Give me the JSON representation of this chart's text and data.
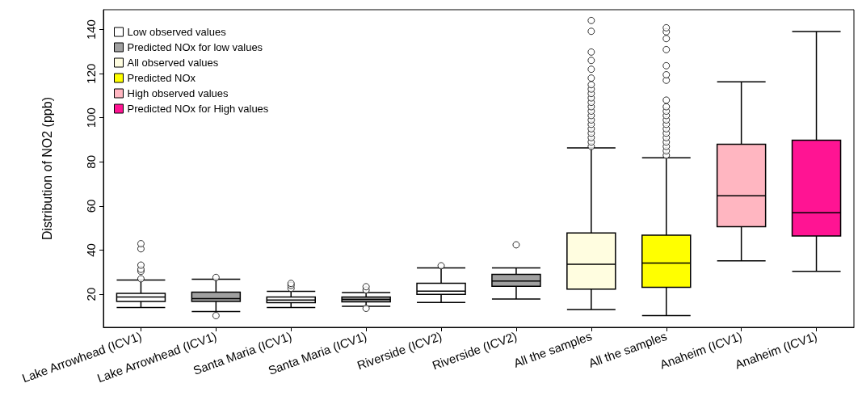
{
  "chart_data": {
    "type": "box",
    "ylabel": "Distribution of NO2 (ppb)",
    "categories": [
      "Lake Arrowhead (ICV1)",
      "Lake Arrowhead (ICV1)",
      "Santa Maria (ICV1)",
      "Santa Maria (ICV1)",
      "Riverside (ICV2)",
      "Riverside (ICV2)",
      "All the samples",
      "All the samples",
      "Anaheim (ICV1)",
      "Anaheim (ICV1)"
    ],
    "ylim": [
      5,
      149
    ],
    "yticks": [
      20,
      40,
      60,
      80,
      100,
      120,
      140
    ],
    "grid": false,
    "legend": "top left",
    "marker": "circle",
    "series": [
      {
        "name": "Low observed values",
        "color": "#ffffff",
        "boxes": [
          {
            "low": 14.0,
            "q1": 16.7,
            "median": 18.7,
            "q3": 20.4,
            "high": 26.4,
            "outliers": [
              27.0,
              30.4,
              31.3,
              33.2,
              40.6,
              42.9
            ]
          },
          null,
          {
            "low": 14.0,
            "q1": 16.2,
            "median": 17.4,
            "q3": 18.7,
            "high": 21.3,
            "outliers": [
              22.7,
              24.0,
              24.9
            ]
          },
          null,
          {
            "low": 16.3,
            "q1": 19.9,
            "median": 21.4,
            "q3": 25.0,
            "high": 31.9,
            "outliers": [
              32.9
            ]
          },
          null,
          null,
          null,
          null,
          null
        ]
      },
      {
        "name": "Predicted NOx for low values",
        "color": "#a0a0a0",
        "boxes": [
          null,
          {
            "low": 12.1,
            "q1": 16.7,
            "median": 18.0,
            "q3": 20.9,
            "high": 26.8,
            "outliers": [
              27.6,
              10.3
            ]
          },
          null,
          {
            "low": 14.5,
            "q1": 16.5,
            "median": 17.6,
            "q3": 18.7,
            "high": 20.8,
            "outliers": [
              21.9,
              23.4,
              13.6
            ]
          },
          null,
          {
            "low": 17.8,
            "q1": 23.6,
            "median": 26.0,
            "q3": 29.0,
            "high": 31.9,
            "outliers": [
              42.4
            ]
          },
          null,
          null,
          null,
          null
        ]
      },
      {
        "name": "All observed values",
        "color": "#fffde0",
        "boxes": [
          null,
          null,
          null,
          null,
          null,
          null,
          {
            "low": 13.1,
            "q1": 22.3,
            "median": 33.6,
            "q3": 47.8,
            "high": 86.3,
            "outliers": [
              87,
              89,
              91,
              93,
              95,
              97,
              99,
              101,
              103,
              105,
              107,
              109,
              111,
              113,
              115,
              118,
              122,
              126,
              129.8,
              139.2,
              144.1
            ]
          },
          null,
          null,
          null
        ]
      },
      {
        "name": "Predicted NOx",
        "color": "#ffff00",
        "boxes": [
          null,
          null,
          null,
          null,
          null,
          null,
          null,
          {
            "low": 10.3,
            "q1": 23.1,
            "median": 34.1,
            "q3": 46.8,
            "high": 81.9,
            "outliers": [
              83,
              85,
              87,
              89,
              91,
              93,
              95,
              97,
              99,
              101,
              103,
              105,
              108,
              117,
              119.5,
              123.6,
              130.9,
              135.9,
              139,
              140.8
            ]
          },
          null,
          null
        ]
      },
      {
        "name": "High observed values",
        "color": "#ffb6c1",
        "boxes": [
          null,
          null,
          null,
          null,
          null,
          null,
          null,
          null,
          {
            "low": 35.1,
            "q1": 50.6,
            "median": 64.6,
            "q3": 88.0,
            "high": 116.3
          },
          null
        ]
      },
      {
        "name": "Predicted NOx for High values",
        "color": "#ff1493",
        "boxes": [
          null,
          null,
          null,
          null,
          null,
          null,
          null,
          null,
          null,
          {
            "low": 30.4,
            "q1": 46.4,
            "median": 56.9,
            "q3": 89.8,
            "high": 139.1
          }
        ]
      }
    ]
  }
}
